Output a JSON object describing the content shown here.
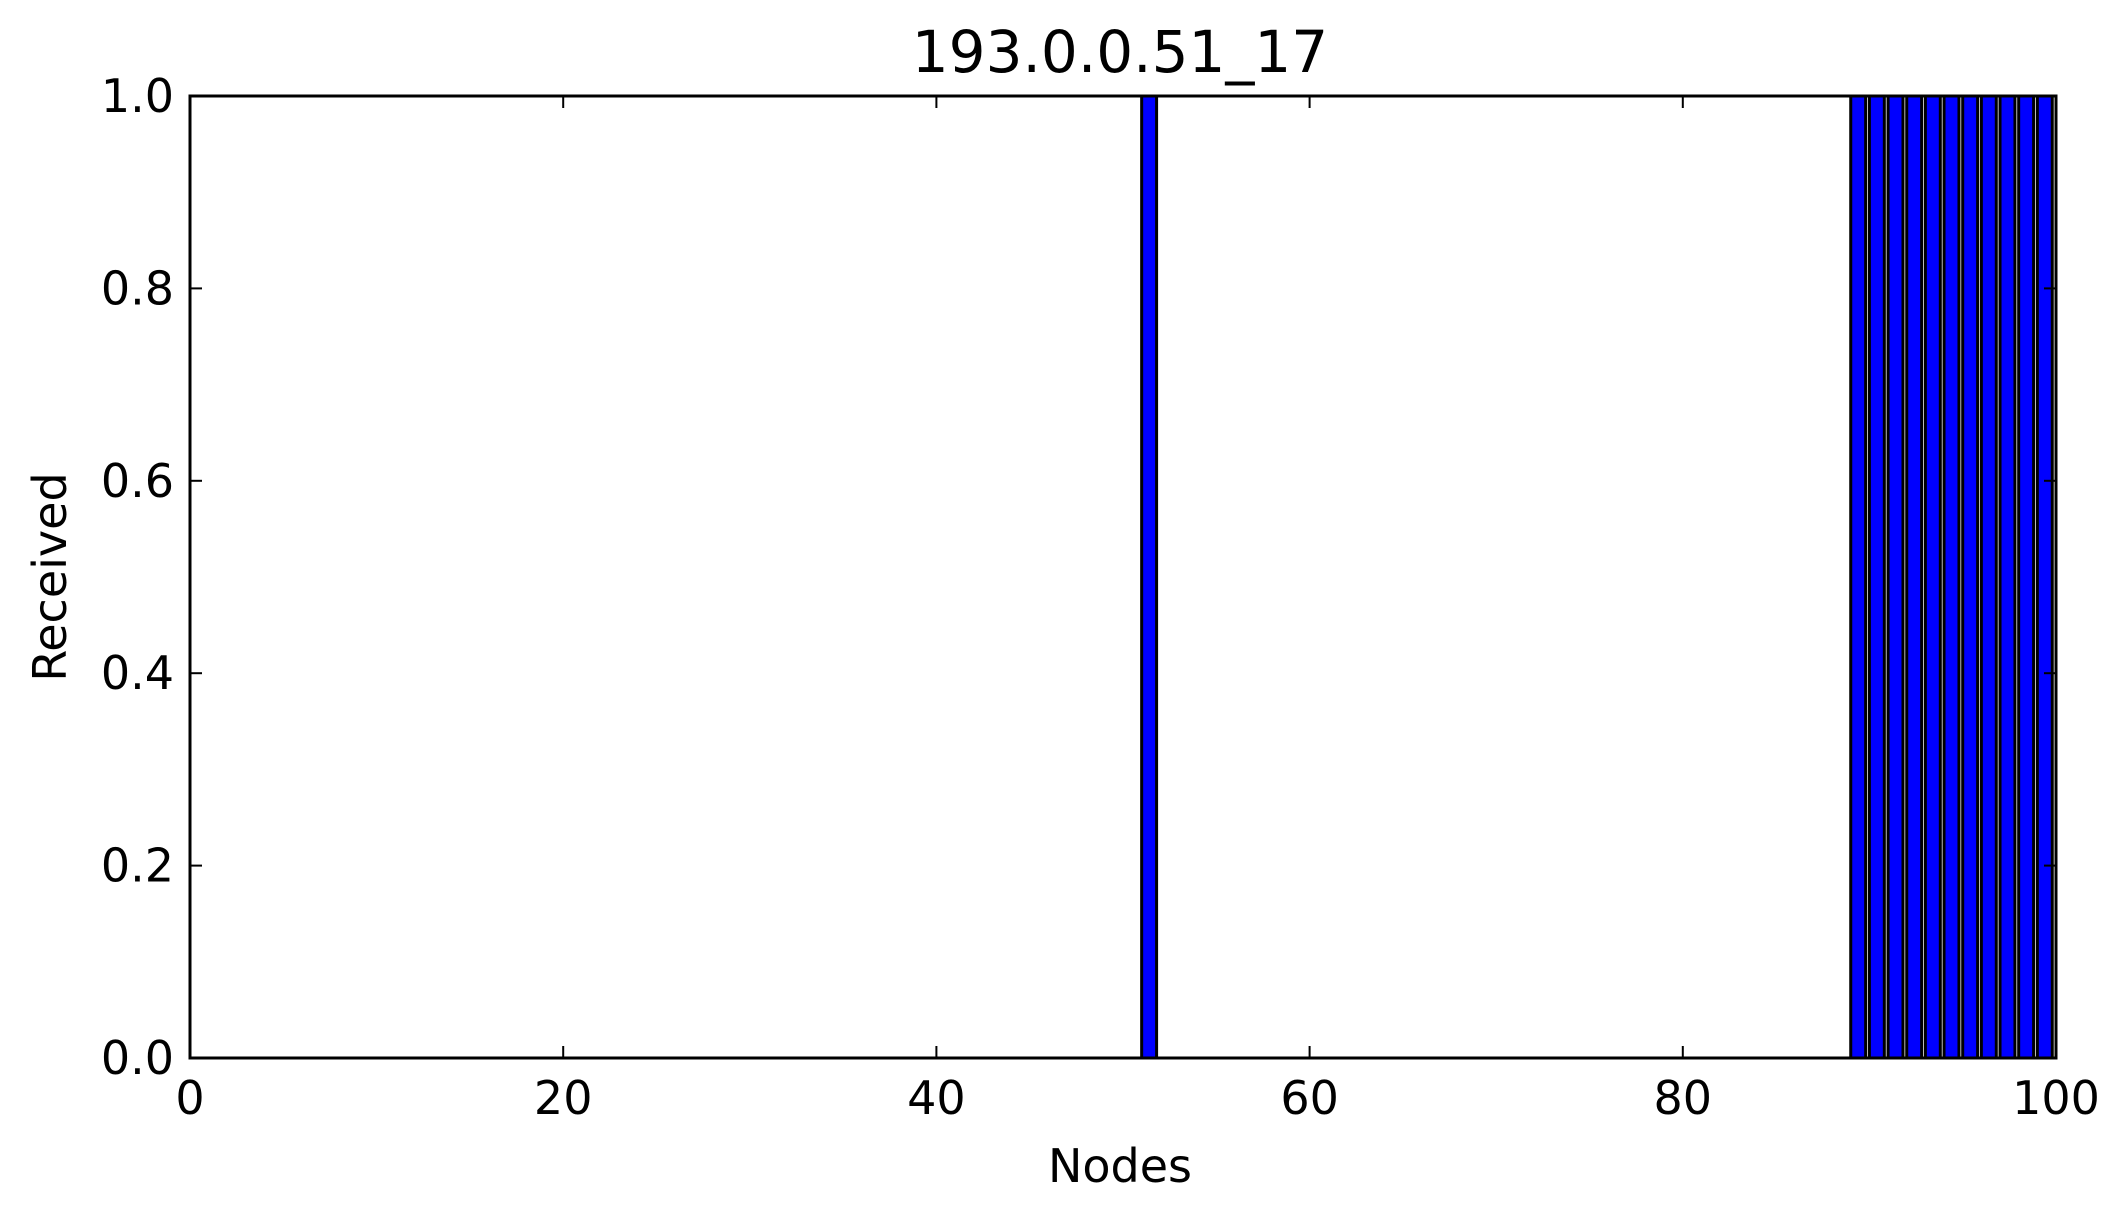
{
  "chart_data": {
    "type": "bar",
    "title": "193.0.0.51_17",
    "xlabel": "Nodes",
    "ylabel": "Received",
    "xlim": [
      0,
      100
    ],
    "ylim": [
      0.0,
      1.0
    ],
    "xticks": [
      "0",
      "20",
      "40",
      "60",
      "80",
      "100"
    ],
    "yticks": [
      "0.0",
      "0.2",
      "0.4",
      "0.6",
      "0.8",
      "1.0"
    ],
    "bar_width": 0.8,
    "x": [
      51,
      89,
      90,
      91,
      92,
      93,
      94,
      95,
      96,
      97,
      98,
      99
    ],
    "values": [
      1,
      1,
      1,
      1,
      1,
      1,
      1,
      1,
      1,
      1,
      1,
      1
    ],
    "bar_color": "#0000ff",
    "edge_color": "#000000",
    "grid": false
  }
}
